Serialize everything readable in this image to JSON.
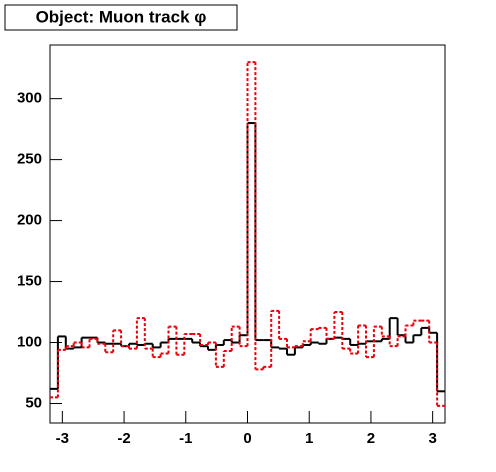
{
  "chart_data": {
    "type": "histogram",
    "title": "Object: Muon track φ",
    "bins": [
      -3.2,
      -3.072,
      -2.944,
      -2.816,
      -2.688,
      -2.56,
      -2.432,
      -2.304,
      -2.176,
      -2.048,
      -1.92,
      -1.792,
      -1.664,
      -1.536,
      -1.408,
      -1.28,
      -1.152,
      -1.024,
      -0.896,
      -0.768,
      -0.64,
      -0.512,
      -0.384,
      -0.256,
      -0.128,
      0,
      0.128,
      0.256,
      0.384,
      0.512,
      0.64,
      0.768,
      0.896,
      1.024,
      1.152,
      1.28,
      1.408,
      1.536,
      1.664,
      1.792,
      1.92,
      2.048,
      2.176,
      2.304,
      2.432,
      2.56,
      2.688,
      2.816,
      2.944,
      3.072,
      3.2
    ],
    "series": [
      {
        "color": "#000000",
        "dashed": false,
        "values": [
          62,
          105,
          95,
          96,
          104,
          104,
          100,
          99,
          99,
          97,
          99,
          98,
          99,
          96,
          100,
          103,
          103,
          103,
          100,
          97,
          94,
          98,
          102,
          100,
          106,
          280,
          102,
          102,
          96,
          95,
          90,
          96,
          98,
          100,
          99,
          103,
          104,
          103,
          98,
          99,
          101,
          101,
          103,
          120,
          106,
          100,
          106,
          112,
          108,
          60
        ]
      },
      {
        "color": "#e8000b",
        "dashed": true,
        "values": [
          55,
          94,
          97,
          100,
          96,
          103,
          99,
          92,
          110,
          97,
          95,
          120,
          95,
          88,
          91,
          113,
          90,
          107,
          107,
          98,
          100,
          80,
          93,
          113,
          97,
          330,
          78,
          80,
          126,
          103,
          96,
          97,
          101,
          111,
          112,
          103,
          125,
          95,
          91,
          114,
          88,
          113,
          105,
          97,
          105,
          114,
          118,
          118,
          100,
          48
        ]
      }
    ],
    "xlim": [
      -3.2,
      3.2
    ],
    "ylim": [
      34,
      344
    ],
    "xticks": [
      -3,
      -2,
      -1,
      0,
      1,
      2,
      3
    ],
    "yticks": [
      50,
      100,
      150,
      200,
      250,
      300
    ]
  }
}
